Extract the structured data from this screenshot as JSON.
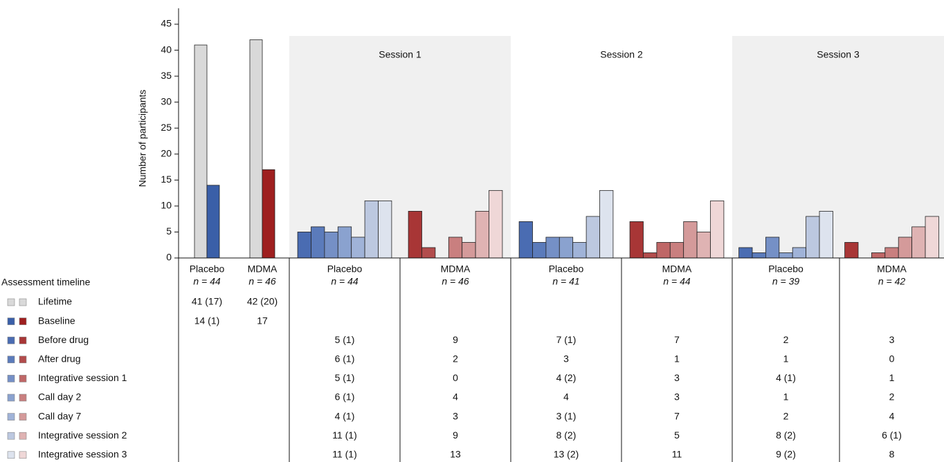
{
  "chart_data": {
    "type": "bar",
    "ylabel": "Number of participants",
    "ylim": [
      0,
      45
    ],
    "yticks": [
      0,
      5,
      10,
      15,
      20,
      25,
      30,
      35,
      40,
      45
    ],
    "legend_title": "Assessment timeline",
    "sessions": [
      "Session 1",
      "Session 2",
      "Session 3"
    ],
    "groups": [
      {
        "name": "Placebo",
        "n": "n = 44"
      },
      {
        "name": "MDMA",
        "n": "n = 46"
      },
      {
        "name": "Placebo",
        "n": "n = 44"
      },
      {
        "name": "MDMA",
        "n": "n = 46"
      },
      {
        "name": "Placebo",
        "n": "n = 41"
      },
      {
        "name": "MDMA",
        "n": "n = 44"
      },
      {
        "name": "Placebo",
        "n": "n = 39"
      },
      {
        "name": "MDMA",
        "n": "n = 42"
      }
    ],
    "series": [
      {
        "name": "Lifetime",
        "colors": [
          "#d9d9d9",
          "#d9d9d9"
        ],
        "values": [
          41,
          42,
          null,
          null,
          null,
          null,
          null,
          null
        ],
        "value_labels": [
          "41 (17)",
          "42 (20)",
          null,
          null,
          null,
          null,
          null,
          null
        ]
      },
      {
        "name": "Baseline",
        "colors": [
          "#3a5fa8",
          "#9e1f1f"
        ],
        "values": [
          14,
          17,
          null,
          null,
          null,
          null,
          null,
          null
        ],
        "value_labels": [
          "14 (1)",
          null,
          null,
          null,
          null,
          null,
          null,
          null
        ]
      },
      {
        "name": "Before drug",
        "colors": [
          "#4a6cb2",
          "#a83636"
        ],
        "values": [
          null,
          null,
          5,
          9,
          7,
          7,
          2,
          3
        ],
        "value_labels": [
          null,
          null,
          "5 (1)",
          null,
          "7 (1)",
          null,
          null,
          null
        ]
      },
      {
        "name": "After drug",
        "colors": [
          "#5b7bbb",
          "#b24c4c"
        ],
        "values": [
          null,
          null,
          6,
          2,
          3,
          1,
          1,
          0
        ],
        "value_labels": [
          null,
          null,
          "6 (1)",
          null,
          null,
          null,
          null,
          null
        ]
      },
      {
        "name": "Integrative session 1",
        "colors": [
          "#7590c6",
          "#bf6767"
        ],
        "values": [
          null,
          null,
          5,
          0,
          4,
          3,
          4,
          1
        ],
        "value_labels": [
          null,
          null,
          "5 (1)",
          null,
          "4 (2)",
          null,
          "4 (1)",
          null
        ]
      },
      {
        "name": "Call day 2",
        "colors": [
          "#8aa2cf",
          "#c97f7f"
        ],
        "values": [
          null,
          null,
          6,
          4,
          4,
          3,
          1,
          2
        ],
        "value_labels": [
          null,
          null,
          "6 (1)",
          null,
          null,
          null,
          null,
          null
        ]
      },
      {
        "name": "Call day 7",
        "colors": [
          "#a0b3d8",
          "#d49a9a"
        ],
        "values": [
          null,
          null,
          4,
          3,
          3,
          7,
          2,
          4
        ],
        "value_labels": [
          null,
          null,
          "4 (1)",
          null,
          "3 (1)",
          null,
          null,
          null
        ]
      },
      {
        "name": "Integrative session 2",
        "colors": [
          "#bcc8e0",
          "#dfb3b3"
        ],
        "values": [
          null,
          null,
          11,
          9,
          8,
          5,
          8,
          6
        ],
        "value_labels": [
          null,
          null,
          "11 (1)",
          null,
          "8 (2)",
          null,
          "8 (2)",
          "6 (1)"
        ]
      },
      {
        "name": "Integrative session 3",
        "colors": [
          "#dde3ee",
          "#efd7d7"
        ],
        "values": [
          null,
          null,
          11,
          13,
          13,
          11,
          9,
          8
        ],
        "value_labels": [
          null,
          null,
          "11 (1)",
          null,
          "13 (2)",
          null,
          "9 (2)",
          null
        ]
      }
    ]
  }
}
